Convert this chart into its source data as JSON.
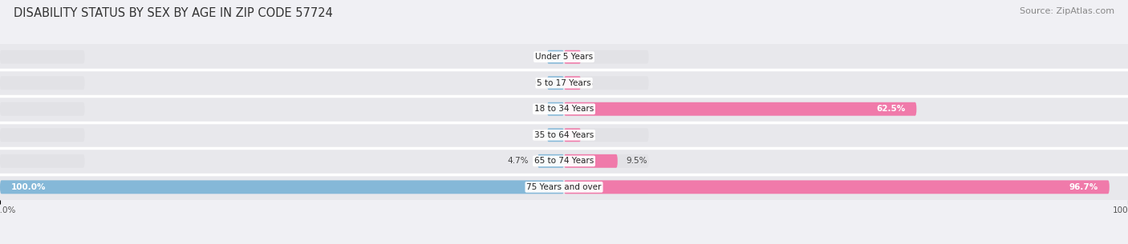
{
  "title": "DISABILITY STATUS BY SEX BY AGE IN ZIP CODE 57724",
  "source": "Source: ZipAtlas.com",
  "categories": [
    "Under 5 Years",
    "5 to 17 Years",
    "18 to 34 Years",
    "35 to 64 Years",
    "65 to 74 Years",
    "75 Years and over"
  ],
  "male_values": [
    0.0,
    0.0,
    0.0,
    0.0,
    4.7,
    100.0
  ],
  "female_values": [
    0.0,
    0.0,
    62.5,
    0.0,
    9.5,
    96.7
  ],
  "male_color": "#85b8d8",
  "female_color": "#f07aaa",
  "bar_bg_color": "#e2e2e6",
  "row_bg_color": "#e8e8ec",
  "sep_color": "#ffffff",
  "bar_height": 0.52,
  "max_val": 100.0,
  "title_fontsize": 10.5,
  "source_fontsize": 8,
  "label_fontsize": 7.5,
  "category_fontsize": 7.5,
  "tick_fontsize": 7.5,
  "legend_fontsize": 8,
  "fig_width": 14.06,
  "fig_height": 3.05,
  "background_color": "#f0f0f4"
}
